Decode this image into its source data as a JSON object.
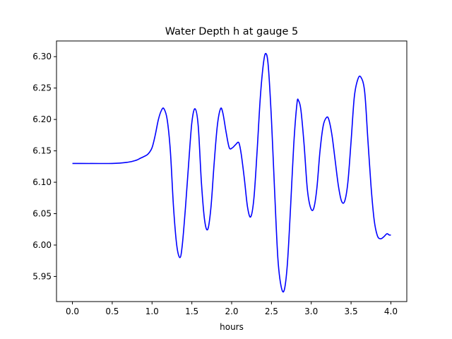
{
  "chart_data": {
    "type": "line",
    "title": "Water Depth h at gauge 5",
    "xlabel": "hours",
    "ylabel": "",
    "xlim": [
      -0.2,
      4.2
    ],
    "ylim": [
      5.91,
      6.325
    ],
    "xticks": [
      0.0,
      0.5,
      1.0,
      1.5,
      2.0,
      2.5,
      3.0,
      3.5,
      4.0
    ],
    "xtick_labels": [
      "0.0",
      "0.5",
      "1.0",
      "1.5",
      "2.0",
      "2.5",
      "3.0",
      "3.5",
      "4.0"
    ],
    "yticks": [
      5.95,
      6.0,
      6.05,
      6.1,
      6.15,
      6.2,
      6.25,
      6.3
    ],
    "ytick_labels": [
      "5.95",
      "6.00",
      "6.05",
      "6.10",
      "6.15",
      "6.20",
      "6.25",
      "6.30"
    ],
    "grid": false,
    "series": [
      {
        "color": "#0000ff",
        "x": [
          0.0,
          0.5,
          0.7,
          0.8,
          0.85,
          0.9,
          0.95,
          1.0,
          1.04,
          1.08,
          1.12,
          1.15,
          1.19,
          1.23,
          1.27,
          1.31,
          1.35,
          1.38,
          1.42,
          1.46,
          1.5,
          1.54,
          1.58,
          1.62,
          1.66,
          1.7,
          1.74,
          1.78,
          1.82,
          1.86,
          1.89,
          1.93,
          1.97,
          2.01,
          2.05,
          2.09,
          2.12,
          2.16,
          2.2,
          2.24,
          2.28,
          2.32,
          2.36,
          2.4,
          2.43,
          2.46,
          2.5,
          2.54,
          2.58,
          2.62,
          2.66,
          2.7,
          2.74,
          2.78,
          2.82,
          2.84,
          2.87,
          2.91,
          2.95,
          2.99,
          3.03,
          3.07,
          3.11,
          3.15,
          3.19,
          3.22,
          3.26,
          3.3,
          3.34,
          3.38,
          3.42,
          3.46,
          3.5,
          3.54,
          3.58,
          3.62,
          3.67,
          3.71,
          3.75,
          3.79,
          3.83,
          3.87,
          3.91,
          3.95,
          3.98,
          4.0
        ],
        "y": [
          6.13,
          6.13,
          6.132,
          6.135,
          6.138,
          6.141,
          6.145,
          6.155,
          6.175,
          6.2,
          6.215,
          6.217,
          6.2,
          6.15,
          6.06,
          6.0,
          5.98,
          6.0,
          6.06,
          6.13,
          6.195,
          6.217,
          6.19,
          6.1,
          6.04,
          6.025,
          6.06,
          6.13,
          6.19,
          6.217,
          6.21,
          6.18,
          6.155,
          6.155,
          6.16,
          6.163,
          6.145,
          6.105,
          6.06,
          6.045,
          6.075,
          6.15,
          6.235,
          6.29,
          6.305,
          6.285,
          6.2,
          6.085,
          5.98,
          5.935,
          5.928,
          5.97,
          6.06,
          6.16,
          6.225,
          6.23,
          6.215,
          6.16,
          6.09,
          6.06,
          6.058,
          6.09,
          6.15,
          6.19,
          6.203,
          6.2,
          6.175,
          6.135,
          6.095,
          6.07,
          6.07,
          6.1,
          6.165,
          6.235,
          6.262,
          6.268,
          6.245,
          6.17,
          6.095,
          6.04,
          6.015,
          6.01,
          6.013,
          6.018,
          6.016,
          6.016
        ]
      }
    ]
  }
}
